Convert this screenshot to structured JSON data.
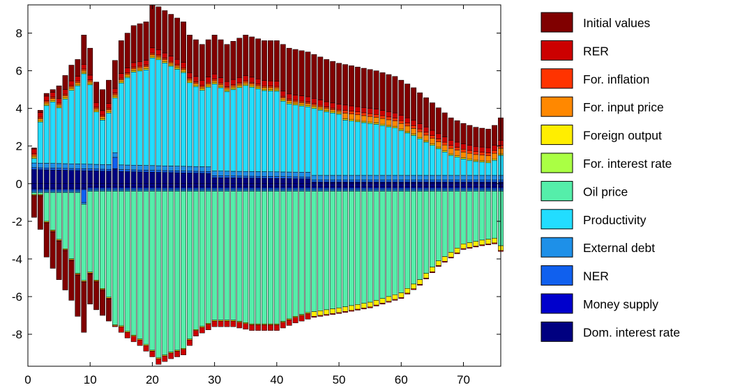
{
  "chart_data": {
    "type": "bar",
    "stacked": true,
    "x": {
      "start": 1,
      "end": 76
    },
    "xlim": [
      0,
      76
    ],
    "ylim": [
      -9.7,
      9.5
    ],
    "xticks": [
      0,
      10,
      20,
      30,
      40,
      50,
      60,
      70
    ],
    "yticks": [
      -8,
      -6,
      -4,
      -2,
      0,
      2,
      4,
      6,
      8
    ],
    "xtick_labels": [
      "0",
      "10",
      "20",
      "30",
      "40",
      "50",
      "60",
      "70"
    ],
    "ytick_labels": [
      "-8",
      "-6",
      "-4",
      "-2",
      "0",
      "2",
      "4",
      "6",
      "8"
    ],
    "title": "",
    "xlabel": "",
    "ylabel": "",
    "grid": false,
    "legend": "right",
    "series": [
      {
        "name": "Initial values",
        "color": "#800000"
      },
      {
        "name": "RER",
        "color": "#cc0000"
      },
      {
        "name": "For. inflation",
        "color": "#ff3300"
      },
      {
        "name": "For. input price",
        "color": "#ff8800"
      },
      {
        "name": "Foreign output",
        "color": "#ffee00"
      },
      {
        "name": "For. interest rate",
        "color": "#aaff44"
      },
      {
        "name": "Oil price",
        "color": "#55eeaa"
      },
      {
        "name": "Productivity",
        "color": "#22ddff"
      },
      {
        "name": "External debt",
        "color": "#1e90e8"
      },
      {
        "name": "NER",
        "color": "#1060ee"
      },
      {
        "name": "Money supply",
        "color": "#0000cc"
      },
      {
        "name": "Dom. interest rate",
        "color": "#000080"
      }
    ],
    "envelope": {
      "top_x": [
        1,
        2,
        3,
        5,
        7,
        8,
        9,
        10,
        11,
        12,
        13,
        15,
        17,
        19,
        20,
        21,
        23,
        25,
        26,
        28,
        30,
        32,
        35,
        38,
        40,
        42,
        45,
        48,
        50,
        53,
        56,
        59,
        62,
        65,
        68,
        70,
        72,
        74,
        75,
        76
      ],
      "top_y": [
        1.9,
        3.9,
        4.8,
        5.2,
        6.3,
        6.6,
        7.9,
        7.2,
        5.4,
        5.0,
        5.5,
        7.6,
        8.4,
        8.6,
        9.5,
        9.4,
        9.0,
        8.6,
        7.9,
        7.4,
        7.9,
        7.4,
        7.9,
        7.6,
        7.6,
        7.2,
        7.0,
        6.6,
        6.4,
        6.2,
        6.0,
        5.7,
        5.1,
        4.3,
        3.5,
        3.2,
        3.0,
        2.9,
        3.1,
        3.5
      ],
      "bottom_x": [
        1,
        2,
        3,
        5,
        7,
        9,
        10,
        12,
        14,
        16,
        18,
        20,
        21,
        23,
        25,
        27,
        30,
        33,
        36,
        40,
        43,
        46,
        50,
        55,
        60,
        63,
        66,
        70,
        73,
        75,
        76
      ],
      "bottom_y": [
        -1.4,
        -2.2,
        -3.9,
        -5.1,
        -6.2,
        -7.9,
        -6.4,
        -7.0,
        -7.6,
        -8.2,
        -8.6,
        -9.2,
        -9.6,
        -9.3,
        -9.1,
        -8.1,
        -7.6,
        -7.6,
        -7.8,
        -7.8,
        -7.4,
        -7.1,
        -6.9,
        -6.6,
        -6.1,
        -5.4,
        -4.4,
        -3.5,
        -3.3,
        -3.2,
        -3.6
      ]
    }
  },
  "legend": {
    "items": [
      {
        "label": "Initial values",
        "color": "#800000"
      },
      {
        "label": "RER",
        "color": "#cc0000"
      },
      {
        "label": "For. inflation",
        "color": "#ff3300"
      },
      {
        "label": "For. input price",
        "color": "#ff8800"
      },
      {
        "label": "Foreign output",
        "color": "#ffee00"
      },
      {
        "label": "For. interest rate",
        "color": "#aaff44"
      },
      {
        "label": "Oil price",
        "color": "#55eeaa"
      },
      {
        "label": "Productivity",
        "color": "#22ddff"
      },
      {
        "label": "External debt",
        "color": "#1e90e8"
      },
      {
        "label": "NER",
        "color": "#1060ee"
      },
      {
        "label": "Money supply",
        "color": "#0000cc"
      },
      {
        "label": "Dom. interest rate",
        "color": "#000080"
      }
    ]
  }
}
